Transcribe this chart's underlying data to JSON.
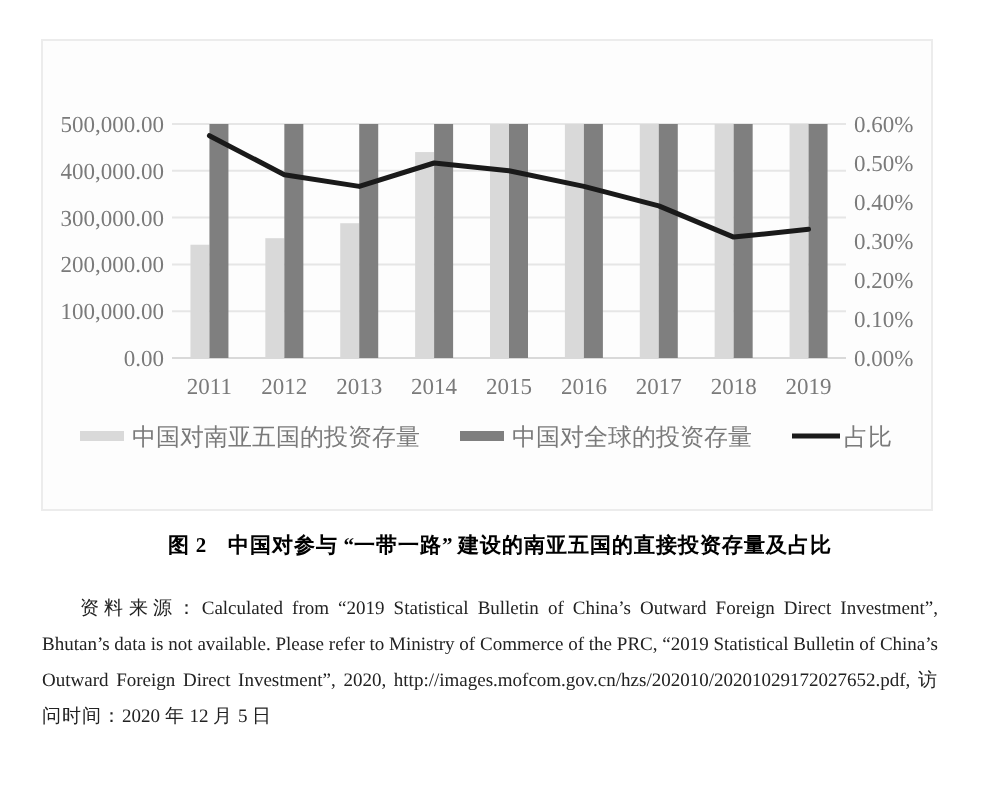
{
  "chart_data": {
    "type": "bar",
    "title": "图 2　中国对参与 “一带一路” 建设的南亚五国的直接投资存量及占比",
    "categories": [
      "2011",
      "2012",
      "2013",
      "2014",
      "2015",
      "2016",
      "2017",
      "2018",
      "2019"
    ],
    "series": [
      {
        "name": "中国对南亚五国的投资存量",
        "color": "#d9d9d9",
        "values": [
          242000,
          256000,
          288000,
          440000,
          500000,
          500000,
          500000,
          500000,
          500000
        ]
      },
      {
        "name": "中国对全球的投资存量",
        "color": "#7f7f7f",
        "values": [
          500000,
          500000,
          500000,
          500000,
          500000,
          500000,
          500000,
          500000,
          500000
        ]
      },
      {
        "name": "占比",
        "color": "#1a1a1a",
        "type": "line",
        "axis": "y2",
        "values": [
          0.57,
          0.47,
          0.44,
          0.5,
          0.48,
          0.44,
          0.39,
          0.31,
          0.33
        ]
      }
    ],
    "ylim": [
      0,
      500000
    ],
    "yticks": [
      {
        "value": 0,
        "label": "0.00"
      },
      {
        "value": 100000,
        "label": "100,000.00"
      },
      {
        "value": 200000,
        "label": "200,000.00"
      },
      {
        "value": 300000,
        "label": "300,000.00"
      },
      {
        "value": 400000,
        "label": "400,000.00"
      },
      {
        "value": 500000,
        "label": "500,000.00"
      }
    ],
    "y2lim": [
      0,
      0.6
    ],
    "y2ticks": [
      {
        "value": 0,
        "label": "0.00%"
      },
      {
        "value": 0.1,
        "label": "0.10%"
      },
      {
        "value": 0.2,
        "label": "0.20%"
      },
      {
        "value": 0.3,
        "label": "0.30%"
      },
      {
        "value": 0.4,
        "label": "0.40%"
      },
      {
        "value": 0.5,
        "label": "0.50%"
      },
      {
        "value": 0.6,
        "label": "0.60%"
      }
    ],
    "grid": "y",
    "legend": "bottom",
    "annotations": [
      "资料来源：Calculated from “2019 Statistical Bulletin of China’s Outward Foreign Direct Investment”, Bhutan’s data is not available. Please refer to Ministry of Commerce of the PRC, “2019 Statistical Bulletin of China’s Outward Foreign Direct Investment”, 2020, http://images.mofcom.gov.cn/hzs/202010/20201029172027652.pdf, 访问时间：2020 年 12 月 5 日"
    ]
  }
}
